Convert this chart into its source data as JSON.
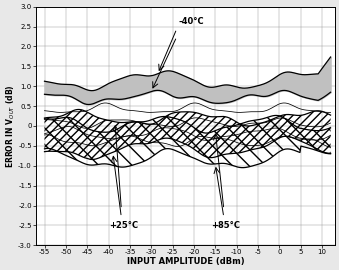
{
  "xlim": [
    -55,
    12
  ],
  "ylim": [
    -3.0,
    3.0
  ],
  "xticks": [
    -55,
    -50,
    -45,
    -40,
    -35,
    -30,
    -25,
    -20,
    -15,
    -10,
    -5,
    0,
    5,
    10
  ],
  "yticks": [
    -3.0,
    -2.5,
    -2.0,
    -1.5,
    -1.0,
    -0.5,
    0,
    0.5,
    1.0,
    1.5,
    2.0,
    2.5,
    3.0
  ],
  "xlabel": "INPUT AMPLITUDE (dBm)",
  "ylabel": "ERROR IN V$_{OUT}$ (dB)",
  "fig_facecolor": "#e8e8e8",
  "ax_facecolor": "#ffffff",
  "gray_band_color": "#c0c0c0",
  "annotation_neg40": "-40°C",
  "annotation_pos25": "+25°C",
  "annotation_pos85": "+85°C"
}
